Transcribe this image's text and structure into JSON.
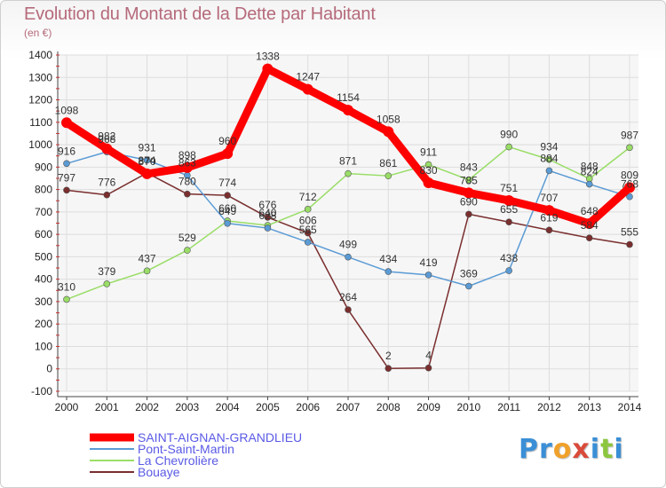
{
  "title": "Evolution du Montant de la Dette par Habitant",
  "subtitle": "(en €)",
  "logo_letters": [
    {
      "ch": "P",
      "color": "#3a8fd6"
    },
    {
      "ch": "r",
      "color": "#3a8fd6"
    },
    {
      "ch": "o",
      "color": "#f0a12a"
    },
    {
      "ch": "x",
      "color": "#d94a3a"
    },
    {
      "ch": "i",
      "color": "#3a8fd6"
    },
    {
      "ch": "t",
      "color": "#8cc63f"
    },
    {
      "ch": "i",
      "color": "#3a8fd6"
    }
  ],
  "chart_data": {
    "type": "line",
    "x": [
      "2000",
      "2001",
      "2002",
      "2003",
      "2004",
      "2005",
      "2006",
      "2007",
      "2008",
      "2009",
      "2010",
      "2011",
      "2012",
      "2013",
      "2014"
    ],
    "ylim": [
      -100,
      1400
    ],
    "yticks": [
      "-100",
      "0",
      "100",
      "200",
      "300",
      "400",
      "500",
      "600",
      "700",
      "800",
      "900",
      "1000",
      "1100",
      "1200",
      "1300",
      "1400"
    ],
    "grid": true,
    "legend_position": "bottom-left",
    "series": [
      {
        "name": "SAINT-AIGNAN-GRANDLIEU",
        "color": "#ff0000",
        "values": [
          1098,
          982,
          870,
          898,
          960,
          1338,
          1247,
          1154,
          1058,
          830,
          785,
          751,
          707,
          648,
          809
        ],
        "labels": [
          "1098",
          "982",
          "870",
          "898",
          "960",
          "1338",
          "1247",
          "1154",
          "1058",
          "830",
          "785",
          "751",
          "707",
          "648",
          "809"
        ]
      },
      {
        "name": "Pont-Saint-Martin",
        "color": "#5b9bd5",
        "values": [
          916,
          968,
          931,
          863,
          649,
          628,
          565,
          499,
          434,
          419,
          369,
          438,
          884,
          824,
          768
        ],
        "labels": [
          "916",
          "968",
          "931",
          "863",
          "649",
          "628",
          "565",
          "499",
          "434",
          "419",
          "369",
          "438",
          "884",
          "824",
          "768"
        ]
      },
      {
        "name": "La Chevrolière",
        "color": "#99dd66",
        "values": [
          310,
          379,
          437,
          529,
          660,
          640,
          712,
          871,
          861,
          911,
          843,
          990,
          934,
          848,
          987
        ],
        "labels": [
          "310",
          "379",
          "437",
          "529",
          "660",
          "640",
          "712",
          "871",
          "861",
          "911",
          "843",
          "990",
          "934",
          "848",
          "987"
        ]
      },
      {
        "name": "Bouaye",
        "color": "#7a2e2e",
        "values": [
          797,
          776,
          874,
          780,
          774,
          676,
          606,
          264,
          2,
          4,
          690,
          655,
          619,
          584,
          555
        ],
        "labels": [
          "797",
          "776",
          "874",
          "780",
          "774",
          "676",
          "606",
          "264",
          "2",
          "4",
          "690",
          "655",
          "619",
          "584",
          "555"
        ]
      }
    ]
  }
}
